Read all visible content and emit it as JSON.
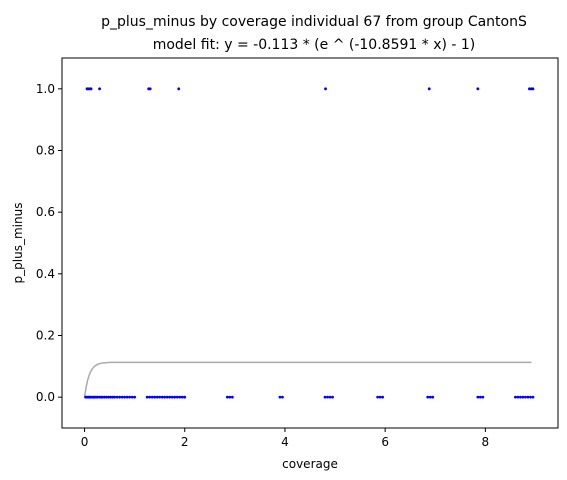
{
  "chart_data": {
    "type": "scatter",
    "title_line1": "p_plus_minus by coverage individual 67 from group CantonS",
    "title_line2": "model fit: y = -0.113 * (e ^ (-10.8591 * x) - 1)",
    "xlabel": "coverage",
    "ylabel": "p_plus_minus",
    "xlim": [
      -0.45,
      9.45
    ],
    "ylim": [
      -0.1,
      1.1
    ],
    "xticks": [
      0,
      2,
      4,
      6,
      8
    ],
    "yticks": [
      0.0,
      0.2,
      0.4,
      0.6,
      0.8,
      1.0
    ],
    "xtick_labels": [
      "0",
      "2",
      "4",
      "6",
      "8"
    ],
    "ytick_labels": [
      "0.0",
      "0.2",
      "0.4",
      "0.6",
      "0.8",
      "1.0"
    ],
    "grid": false,
    "colors": {
      "points": "#0000ff",
      "fit": "#aaaaaa",
      "axes": "#000000"
    },
    "fit": {
      "a": -0.113,
      "b": -10.8591,
      "x_range": [
        0,
        8.92
      ]
    },
    "series": [
      {
        "values": {
          "x": [
            0.05,
            0.07,
            0.1,
            0.13,
            0.3,
            1.28,
            1.31,
            1.88,
            4.81,
            6.88,
            7.85,
            8.88,
            8.92,
            8.95,
            0.02,
            0.04,
            0.06,
            0.08,
            0.1,
            0.12,
            0.15,
            0.18,
            0.2,
            0.23,
            0.26,
            0.3,
            0.33,
            0.36,
            0.4,
            0.44,
            0.48,
            0.52,
            0.56,
            0.6,
            0.65,
            0.7,
            0.75,
            0.8,
            0.85,
            0.9,
            0.95,
            1.0,
            1.25,
            1.3,
            1.35,
            1.4,
            1.45,
            1.5,
            1.55,
            1.6,
            1.65,
            1.7,
            1.75,
            1.8,
            1.85,
            1.9,
            1.95,
            2.0,
            2.85,
            2.9,
            2.95,
            3.9,
            3.95,
            4.8,
            4.85,
            4.9,
            4.95,
            5.85,
            5.9,
            5.95,
            6.85,
            6.9,
            6.95,
            7.85,
            7.9,
            7.95,
            8.6,
            8.65,
            8.7,
            8.75,
            8.8,
            8.85,
            8.9,
            8.95
          ],
          "y": [
            1,
            1,
            1,
            1,
            1,
            1,
            1,
            1,
            1,
            1,
            1,
            1,
            1,
            1,
            0,
            0,
            0,
            0,
            0,
            0,
            0,
            0,
            0,
            0,
            0,
            0,
            0,
            0,
            0,
            0,
            0,
            0,
            0,
            0,
            0,
            0,
            0,
            0,
            0,
            0,
            0,
            0,
            0,
            0,
            0,
            0,
            0,
            0,
            0,
            0,
            0,
            0,
            0,
            0,
            0,
            0,
            0,
            0,
            0,
            0,
            0,
            0,
            0,
            0,
            0,
            0,
            0,
            0,
            0,
            0,
            0,
            0,
            0,
            0,
            0,
            0,
            0,
            0,
            0,
            0,
            0,
            0,
            0,
            0
          ]
        }
      }
    ]
  }
}
